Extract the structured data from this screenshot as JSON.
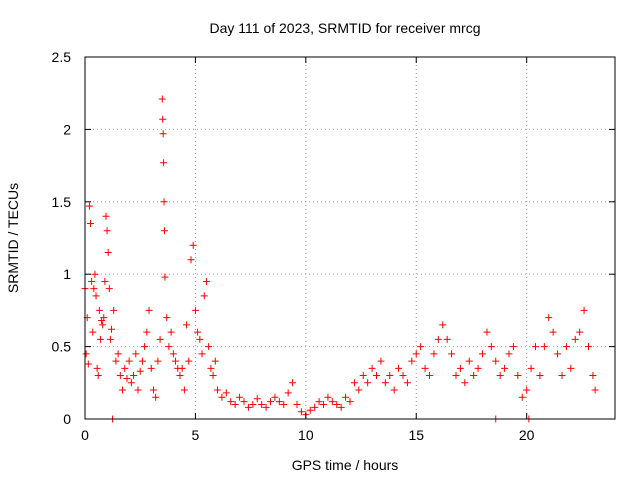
{
  "chart_data": {
    "type": "scatter",
    "title": "Day 111 of 2023, SRMTID for receiver mrcg",
    "xlabel": "GPS time / hours",
    "ylabel": "SRMTID / TECUs",
    "xlim": [
      0,
      24
    ],
    "ylim": [
      0,
      2.5
    ],
    "xticks": [
      0,
      5,
      10,
      15,
      20
    ],
    "xtick_labels": [
      "0",
      "5",
      "10",
      "15",
      "20"
    ],
    "yticks": [
      0,
      0.5,
      1,
      1.5,
      2,
      2.5
    ],
    "ytick_labels": [
      "0",
      "0.5",
      "1",
      "1.5",
      "2",
      "2.5"
    ],
    "grid": true,
    "marker": "+",
    "color": "#ff0000",
    "series": [
      {
        "name": "SRMTID",
        "points": [
          [
            0.0,
            0.9
          ],
          [
            0.05,
            0.45
          ],
          [
            0.1,
            0.7
          ],
          [
            0.15,
            0.38
          ],
          [
            0.2,
            1.47
          ],
          [
            0.25,
            1.35
          ],
          [
            0.3,
            0.95
          ],
          [
            0.35,
            0.6
          ],
          [
            0.4,
            0.9
          ],
          [
            0.45,
            1.0
          ],
          [
            0.5,
            0.85
          ],
          [
            0.55,
            0.35
          ],
          [
            0.6,
            0.3
          ],
          [
            0.65,
            0.75
          ],
          [
            0.7,
            0.55
          ],
          [
            0.75,
            0.68
          ],
          [
            0.8,
            0.65
          ],
          [
            0.85,
            0.7
          ],
          [
            0.9,
            0.95
          ],
          [
            0.95,
            1.4
          ],
          [
            1.0,
            1.3
          ],
          [
            1.05,
            1.15
          ],
          [
            1.1,
            0.9
          ],
          [
            1.15,
            0.55
          ],
          [
            1.2,
            0.62
          ],
          [
            1.3,
            0.75
          ],
          [
            1.4,
            0.4
          ],
          [
            1.5,
            0.45
          ],
          [
            1.6,
            0.3
          ],
          [
            1.7,
            0.2
          ],
          [
            1.8,
            0.35
          ],
          [
            1.9,
            0.28
          ],
          [
            2.0,
            0.4
          ],
          [
            2.1,
            0.25
          ],
          [
            2.2,
            0.3
          ],
          [
            2.3,
            0.45
          ],
          [
            2.4,
            0.2
          ],
          [
            2.5,
            0.33
          ],
          [
            2.6,
            0.4
          ],
          [
            2.7,
            0.5
          ],
          [
            2.8,
            0.6
          ],
          [
            2.9,
            0.75
          ],
          [
            3.0,
            0.35
          ],
          [
            3.1,
            0.2
          ],
          [
            3.2,
            0.15
          ],
          [
            3.3,
            0.4
          ],
          [
            3.4,
            0.55
          ],
          [
            3.5,
            2.21
          ],
          [
            3.52,
            2.07
          ],
          [
            3.54,
            1.97
          ],
          [
            3.56,
            1.77
          ],
          [
            3.58,
            1.5
          ],
          [
            3.6,
            1.3
          ],
          [
            3.62,
            0.98
          ],
          [
            3.7,
            0.7
          ],
          [
            3.8,
            0.5
          ],
          [
            3.9,
            0.6
          ],
          [
            4.0,
            0.45
          ],
          [
            4.1,
            0.4
          ],
          [
            4.2,
            0.35
          ],
          [
            4.3,
            0.3
          ],
          [
            4.4,
            0.35
          ],
          [
            4.5,
            0.2
          ],
          [
            4.6,
            0.65
          ],
          [
            4.7,
            0.4
          ],
          [
            4.8,
            1.1
          ],
          [
            4.9,
            1.2
          ],
          [
            5.0,
            0.75
          ],
          [
            5.1,
            0.6
          ],
          [
            5.2,
            0.55
          ],
          [
            5.3,
            0.45
          ],
          [
            5.4,
            0.85
          ],
          [
            5.5,
            0.95
          ],
          [
            5.6,
            0.5
          ],
          [
            5.7,
            0.35
          ],
          [
            5.8,
            0.3
          ],
          [
            5.9,
            0.4
          ],
          [
            6.0,
            0.2
          ],
          [
            6.2,
            0.15
          ],
          [
            6.4,
            0.18
          ],
          [
            6.6,
            0.12
          ],
          [
            6.8,
            0.1
          ],
          [
            7.0,
            0.15
          ],
          [
            7.2,
            0.12
          ],
          [
            7.4,
            0.08
          ],
          [
            7.6,
            0.1
          ],
          [
            7.8,
            0.14
          ],
          [
            8.0,
            0.1
          ],
          [
            8.2,
            0.08
          ],
          [
            8.4,
            0.12
          ],
          [
            8.6,
            0.15
          ],
          [
            8.8,
            0.12
          ],
          [
            9.0,
            0.1
          ],
          [
            9.2,
            0.18
          ],
          [
            9.4,
            0.25
          ],
          [
            9.6,
            0.1
          ],
          [
            9.8,
            0.05
          ],
          [
            10.0,
            0.03
          ],
          [
            10.2,
            0.06
          ],
          [
            10.4,
            0.08
          ],
          [
            10.6,
            0.12
          ],
          [
            10.8,
            0.1
          ],
          [
            11.0,
            0.15
          ],
          [
            11.2,
            0.12
          ],
          [
            11.4,
            0.1
          ],
          [
            11.6,
            0.08
          ],
          [
            11.8,
            0.15
          ],
          [
            12.0,
            0.12
          ],
          [
            12.2,
            0.25
          ],
          [
            12.4,
            0.2
          ],
          [
            12.6,
            0.3
          ],
          [
            12.8,
            0.25
          ],
          [
            13.0,
            0.35
          ],
          [
            13.2,
            0.3
          ],
          [
            13.4,
            0.4
          ],
          [
            13.6,
            0.25
          ],
          [
            13.8,
            0.3
          ],
          [
            14.0,
            0.2
          ],
          [
            14.2,
            0.35
          ],
          [
            14.4,
            0.3
          ],
          [
            14.6,
            0.25
          ],
          [
            14.8,
            0.4
          ],
          [
            15.0,
            0.45
          ],
          [
            15.2,
            0.5
          ],
          [
            15.4,
            0.35
          ],
          [
            15.6,
            0.3
          ],
          [
            15.8,
            0.45
          ],
          [
            16.0,
            0.55
          ],
          [
            16.2,
            0.65
          ],
          [
            16.4,
            0.55
          ],
          [
            16.6,
            0.45
          ],
          [
            16.8,
            0.3
          ],
          [
            17.0,
            0.35
          ],
          [
            17.2,
            0.25
          ],
          [
            17.4,
            0.4
          ],
          [
            17.6,
            0.3
          ],
          [
            17.8,
            0.35
          ],
          [
            18.0,
            0.45
          ],
          [
            18.2,
            0.6
          ],
          [
            18.4,
            0.5
          ],
          [
            18.6,
            0.4
          ],
          [
            18.8,
            0.3
          ],
          [
            19.0,
            0.35
          ],
          [
            19.2,
            0.45
          ],
          [
            19.4,
            0.5
          ],
          [
            19.6,
            0.3
          ],
          [
            19.8,
            0.15
          ],
          [
            20.0,
            0.2
          ],
          [
            20.2,
            0.35
          ],
          [
            20.4,
            0.5
          ],
          [
            20.6,
            0.3
          ],
          [
            20.8,
            0.5
          ],
          [
            21.0,
            0.7
          ],
          [
            21.2,
            0.6
          ],
          [
            21.4,
            0.45
          ],
          [
            21.6,
            0.3
          ],
          [
            21.8,
            0.5
          ],
          [
            22.0,
            0.35
          ],
          [
            22.2,
            0.55
          ],
          [
            22.4,
            0.6
          ],
          [
            22.6,
            0.75
          ],
          [
            22.8,
            0.5
          ],
          [
            23.0,
            0.3
          ],
          [
            23.1,
            0.2
          ],
          [
            1.25,
            0.0
          ],
          [
            18.6,
            0.0
          ],
          [
            20.1,
            0.0
          ]
        ]
      }
    ]
  }
}
